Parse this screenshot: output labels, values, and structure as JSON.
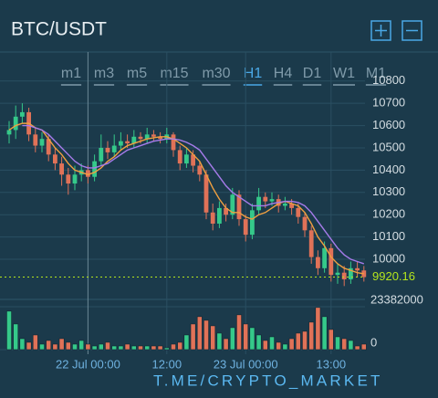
{
  "header": {
    "title": "BTC/USDT"
  },
  "timeframes": {
    "items": [
      "m1",
      "m3",
      "m5",
      "m15",
      "m30",
      "H1",
      "H4",
      "D1",
      "W1",
      "M1"
    ],
    "active": 5
  },
  "watermark": "T.ME/CRYPTO_MARKET",
  "chart_data": {
    "type": "candlestick",
    "categories": [
      null,
      null,
      null,
      null,
      null,
      null,
      null,
      null,
      null,
      null,
      null,
      null,
      "22 Jul 00:00",
      null,
      null,
      null,
      null,
      null,
      null,
      null,
      null,
      null,
      null,
      null,
      "12:00",
      null,
      null,
      null,
      null,
      null,
      null,
      null,
      null,
      null,
      null,
      null,
      "23 Jul 00:00",
      null,
      null,
      null,
      null,
      null,
      null,
      null,
      null,
      null,
      null,
      null,
      null,
      "13:00",
      null,
      null,
      null,
      null,
      null
    ],
    "open": [
      10560,
      10580,
      10640,
      10660,
      10560,
      10510,
      10540,
      10470,
      10430,
      10380,
      10340,
      10380,
      10400,
      10370,
      10440,
      10500,
      10480,
      10510,
      10530,
      10520,
      10550,
      10540,
      10560,
      10550,
      10540,
      10560,
      10490,
      10430,
      10470,
      10420,
      10380,
      10210,
      10160,
      10230,
      10200,
      10290,
      10180,
      10110,
      10220,
      10280,
      10260,
      10270,
      10240,
      10250,
      10230,
      10190,
      10130,
      10010,
      9960,
      10050,
      9930,
      9940,
      9910,
      9960,
      9950
    ],
    "high": [
      10620,
      10690,
      10700,
      10680,
      10590,
      10570,
      10560,
      10500,
      10460,
      10410,
      10420,
      10430,
      10420,
      10470,
      10560,
      10530,
      10560,
      10570,
      10560,
      10580,
      10570,
      10590,
      10580,
      10570,
      10590,
      10570,
      10510,
      10500,
      10490,
      10440,
      10400,
      10250,
      10260,
      10250,
      10320,
      10310,
      10200,
      10250,
      10320,
      10300,
      10300,
      10290,
      10280,
      10270,
      10250,
      10210,
      10150,
      10040,
      10080,
      10070,
      9980,
      9970,
      9990,
      9990,
      9970
    ],
    "low": [
      10520,
      10540,
      10610,
      10530,
      10480,
      10480,
      10440,
      10400,
      10330,
      10290,
      10310,
      10350,
      10340,
      10350,
      10420,
      10450,
      10460,
      10490,
      10500,
      10500,
      10520,
      10520,
      10530,
      10520,
      10520,
      10460,
      10400,
      10410,
      10390,
      10350,
      10180,
      10130,
      10140,
      10170,
      10180,
      10150,
      10080,
      10090,
      10200,
      10230,
      10240,
      10210,
      10220,
      10200,
      10160,
      10100,
      9980,
      9930,
      9940,
      9900,
      9890,
      9880,
      9890,
      9920,
      9900
    ],
    "close": [
      10580,
      10640,
      10660,
      10560,
      10510,
      10540,
      10470,
      10430,
      10380,
      10340,
      10380,
      10400,
      10370,
      10440,
      10500,
      10480,
      10510,
      10530,
      10520,
      10550,
      10540,
      10560,
      10550,
      10540,
      10560,
      10490,
      10430,
      10470,
      10420,
      10380,
      10210,
      10160,
      10230,
      10200,
      10290,
      10180,
      10110,
      10220,
      10280,
      10260,
      10270,
      10240,
      10250,
      10230,
      10190,
      10130,
      10010,
      9960,
      10050,
      9930,
      9940,
      9910,
      9960,
      9950,
      9920.16
    ],
    "up_color": "#35c98a",
    "down_color": "#e07258",
    "series": [
      {
        "color": "#f0a040",
        "values": [
          10580,
          10600,
          10610,
          10610,
          10590,
          10580,
          10540,
          10500,
          10470,
          10430,
          10400,
          10390,
          10380,
          10390,
          10410,
          10440,
          10460,
          10490,
          10510,
          10520,
          10530,
          10540,
          10545,
          10550,
          10550,
          10540,
          10520,
          10500,
          10470,
          10440,
          10380,
          10320,
          10270,
          10230,
          10210,
          10210,
          10190,
          10180,
          10200,
          10210,
          10230,
          10250,
          10260,
          10250,
          10240,
          10210,
          10160,
          10100,
          10060,
          10010,
          9980,
          9960,
          9950,
          9940,
          9935
        ]
      },
      {
        "color": "#a67bea",
        "values": [
          null,
          null,
          10600,
          10600,
          10590,
          10580,
          10560,
          10530,
          10500,
          10470,
          10440,
          10420,
          10410,
          10410,
          10420,
          10430,
          10450,
          10470,
          10490,
          10500,
          10510,
          10520,
          10530,
          10535,
          10540,
          10540,
          10535,
          10525,
          10510,
          10490,
          10450,
          10410,
          10370,
          10330,
          10300,
          10280,
          10260,
          10240,
          10240,
          10240,
          10250,
          10255,
          10260,
          10260,
          10255,
          10240,
          10210,
          10170,
          10130,
          10090,
          10050,
          10020,
          10000,
          9990,
          9980
        ]
      }
    ],
    "ylim": [
      9820,
      10930
    ],
    "yticks": [
      10000,
      10100,
      10200,
      10300,
      10400,
      10500,
      10600,
      10700,
      10800
    ],
    "last_price_color": "#b5e61d",
    "volume": {
      "values": [
        21000000,
        14000000,
        6000000,
        4000000,
        8000000,
        3000000,
        5000000,
        3000000,
        6000000,
        4000000,
        3000000,
        5000000,
        3000000,
        2000000,
        3000000,
        4000000,
        2000000,
        2000000,
        3000000,
        2000000,
        2000000,
        2000000,
        2000000,
        2000000,
        1000000,
        3000000,
        4000000,
        8000000,
        14000000,
        18000000,
        16000000,
        13000000,
        9000000,
        6000000,
        12000000,
        19000000,
        14000000,
        12000000,
        8000000,
        5000000,
        7000000,
        4000000,
        3000000,
        6000000,
        9000000,
        10000000,
        15000000,
        23000000,
        18000000,
        11000000,
        7000000,
        6000000,
        5000000,
        2000000,
        3000000
      ],
      "ylim": [
        0,
        26400000
      ],
      "yticks": [
        0,
        23382000
      ]
    }
  }
}
